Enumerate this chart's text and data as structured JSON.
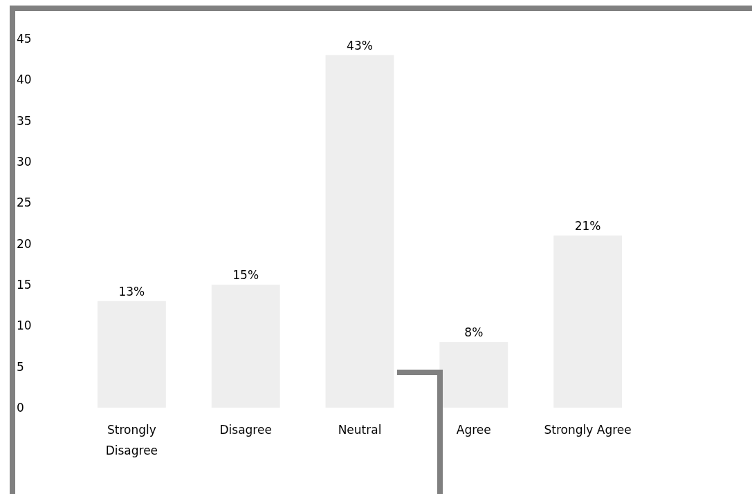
{
  "chart_data": {
    "type": "bar",
    "categories": [
      "Strongly Disagree",
      "Disagree",
      "Neutral",
      "Agree",
      "Strongly Agree"
    ],
    "values": [
      13,
      15,
      43,
      8,
      21
    ],
    "value_labels": [
      "13%",
      "15%",
      "43%",
      "8%",
      "21%"
    ],
    "color": "#eeeeee",
    "ylim": [
      0,
      45
    ],
    "yticks": [
      0,
      5,
      10,
      15,
      20,
      25,
      30,
      35,
      40,
      45
    ],
    "grid": false
  }
}
